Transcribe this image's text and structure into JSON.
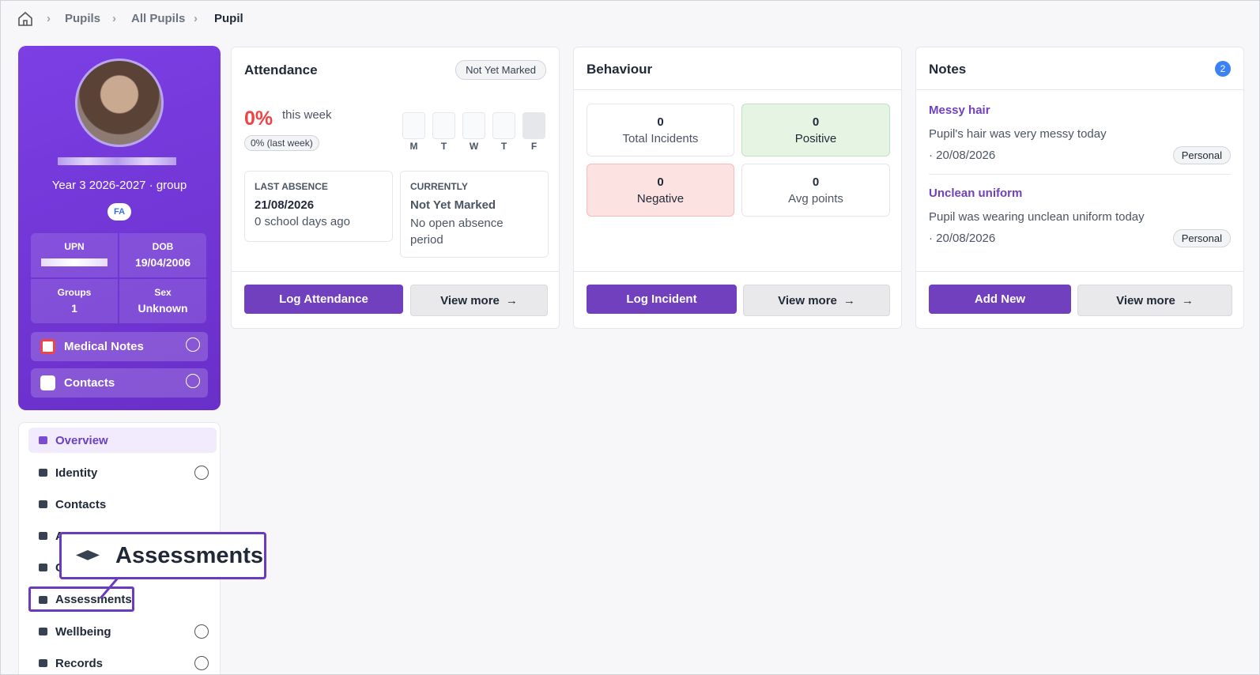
{
  "breadcrumb": [
    "Pupils",
    "All Pupils",
    "Pupil"
  ],
  "profile": {
    "group_line": "Year 3 2026-2027 · group",
    "badge": "FA",
    "upn_label": "UPN",
    "fields": [
      {
        "label": "DOB",
        "value": "19/04/2006"
      },
      {
        "label": "Groups",
        "value": "1"
      },
      {
        "label": "Sex",
        "value": "Unknown"
      }
    ],
    "accordions": [
      "Medical Notes",
      "Contacts"
    ]
  },
  "nav": [
    "Overview",
    "Identity",
    "Contacts",
    "A",
    "C",
    "Assessments",
    "Wellbeing",
    "Records"
  ],
  "callout": "Assessments",
  "attendance": {
    "title": "Attendance",
    "status": "Not Yet Marked",
    "percent": "0%",
    "period": "this week",
    "last_week": "0% (last week)",
    "days": [
      "M",
      "T",
      "W",
      "T",
      "F"
    ],
    "last_absence": {
      "label": "LAST ABSENCE",
      "date": "21/08/2026",
      "ago": "0 school days ago"
    },
    "currently": {
      "label": "CURRENTLY",
      "status": "Not Yet Marked",
      "detail": "No open absence period"
    },
    "actions": [
      "Log Attendance",
      "View more"
    ]
  },
  "behaviour": {
    "title": "Behaviour",
    "stats": [
      {
        "value": "0",
        "label": "Total Incidents"
      },
      {
        "value": "0",
        "label": "Positive"
      },
      {
        "value": "0",
        "label": "Negative"
      },
      {
        "value": "0",
        "label": "Avg points"
      }
    ],
    "actions": [
      "Log Incident",
      "View more"
    ]
  },
  "notes": {
    "title": "Notes",
    "count": "2",
    "items": [
      {
        "title": "Messy hair",
        "text": "Pupil's hair was very messy today",
        "date": "· 20/08/2026",
        "tag": "Personal"
      },
      {
        "title": "Unclean uniform",
        "text": "Pupil was wearing unclean uniform today",
        "date": "· 20/08/2026",
        "tag": "Personal"
      }
    ],
    "actions": [
      "Add New",
      "View more"
    ]
  }
}
